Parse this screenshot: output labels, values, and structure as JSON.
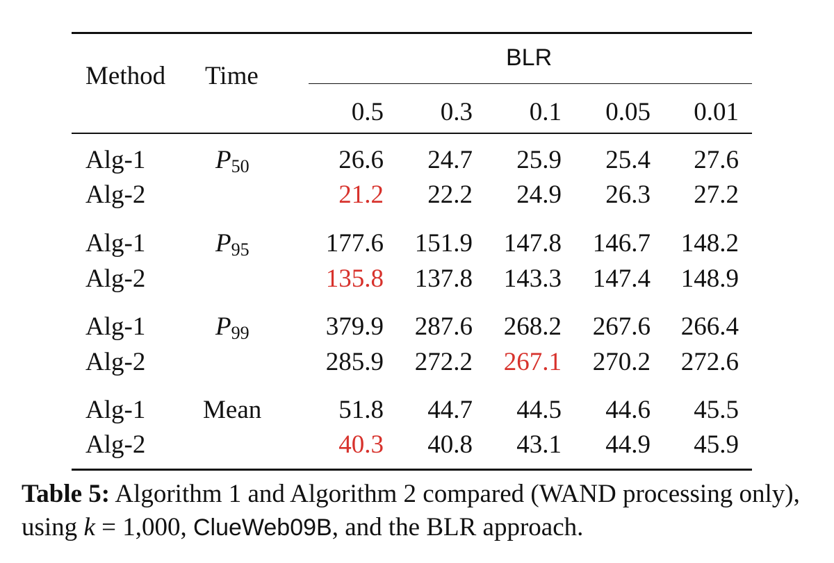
{
  "table": {
    "header": {
      "method": "Method",
      "time": "Time",
      "group": "BLR",
      "columns": [
        "0.5",
        "0.3",
        "0.1",
        "0.05",
        "0.01"
      ]
    },
    "groups": [
      {
        "time_letter": "P",
        "time_sub": "50",
        "rows": [
          {
            "method": "Alg-1",
            "values": [
              "26.6",
              "24.7",
              "25.9",
              "25.4",
              "27.6"
            ]
          },
          {
            "method": "Alg-2",
            "values": [
              "21.2",
              "22.2",
              "24.9",
              "26.3",
              "27.2"
            ]
          }
        ],
        "highlight": {
          "row": 1,
          "col": 0
        }
      },
      {
        "time_letter": "P",
        "time_sub": "95",
        "rows": [
          {
            "method": "Alg-1",
            "values": [
              "177.6",
              "151.9",
              "147.8",
              "146.7",
              "148.2"
            ]
          },
          {
            "method": "Alg-2",
            "values": [
              "135.8",
              "137.8",
              "143.3",
              "147.4",
              "148.9"
            ]
          }
        ],
        "highlight": {
          "row": 1,
          "col": 0
        }
      },
      {
        "time_letter": "P",
        "time_sub": "99",
        "rows": [
          {
            "method": "Alg-1",
            "values": [
              "379.9",
              "287.6",
              "268.2",
              "267.6",
              "266.4"
            ]
          },
          {
            "method": "Alg-2",
            "values": [
              "285.9",
              "272.2",
              "267.1",
              "270.2",
              "272.6"
            ]
          }
        ],
        "highlight": {
          "row": 1,
          "col": 2
        }
      },
      {
        "time_label": "Mean",
        "rows": [
          {
            "method": "Alg-1",
            "values": [
              "51.8",
              "44.7",
              "44.5",
              "44.6",
              "45.5"
            ]
          },
          {
            "method": "Alg-2",
            "values": [
              "40.3",
              "40.8",
              "43.1",
              "44.9",
              "45.9"
            ]
          }
        ],
        "highlight": {
          "row": 1,
          "col": 0
        }
      }
    ],
    "highlight_color": "#d7322c"
  },
  "caption": {
    "label": "Table 5:",
    "text_1": " Algorithm 1 and Algorithm 2 compared (WAND processing only), using ",
    "k": "k",
    "text_2": " = 1,000, ",
    "dataset": "ClueWeb09B",
    "text_3": ", and the BLR approach."
  }
}
